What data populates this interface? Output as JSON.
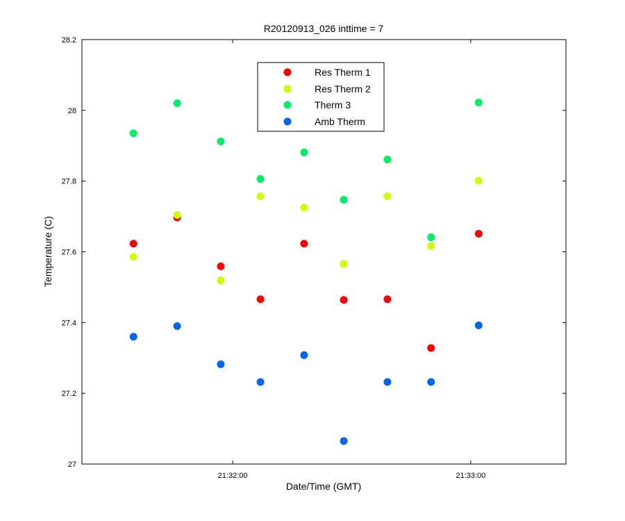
{
  "chart_data": {
    "type": "scatter",
    "title": "R20120913_026 inttime = 7",
    "xlabel": "Date/Time (GMT)",
    "ylabel": "Temperature (C)",
    "x_unit": "time",
    "xlim": [
      "21:31:22",
      "21:33:24"
    ],
    "ylim": [
      27,
      28.2
    ],
    "yticks": [
      27,
      27.2,
      27.4,
      27.6,
      27.8,
      28,
      28.2
    ],
    "ytick_labels": [
      "27",
      "27.2",
      "27.4",
      "27.6",
      "27.8",
      "28",
      "28.2"
    ],
    "xticks": [
      "21:32:00",
      "21:33:00"
    ],
    "xtick_labels": [
      "21:32:00",
      "21:33:00"
    ],
    "grid": false,
    "legend_position": "top-center",
    "x": [
      "21:31:35",
      "21:31:46",
      "21:31:57",
      "21:32:07",
      "21:32:18",
      "21:32:28",
      "21:32:39",
      "21:32:50",
      "21:33:02"
    ],
    "series": [
      {
        "name": "Res Therm 1",
        "color": "#ff0000",
        "values": [
          27.623,
          27.697,
          27.559,
          27.466,
          27.623,
          27.464,
          27.466,
          27.328,
          27.651
        ]
      },
      {
        "name": "Res Therm 2",
        "color": "#ccff00",
        "values": [
          27.586,
          27.704,
          27.519,
          27.757,
          27.725,
          27.566,
          27.757,
          27.616,
          27.801
        ]
      },
      {
        "name": "Therm 3",
        "color": "#00ee66",
        "values": [
          27.935,
          28.02,
          27.912,
          27.806,
          27.881,
          27.747,
          27.861,
          27.641,
          28.022
        ]
      },
      {
        "name": "Amb Therm",
        "color": "#0066ee",
        "values": [
          27.36,
          27.39,
          27.282,
          27.232,
          27.308,
          null,
          27.232,
          27.232,
          27.392
        ]
      }
    ],
    "extra_points": [
      {
        "series": "Amb Therm",
        "x": "21:32:28",
        "y": 27.065
      }
    ]
  }
}
